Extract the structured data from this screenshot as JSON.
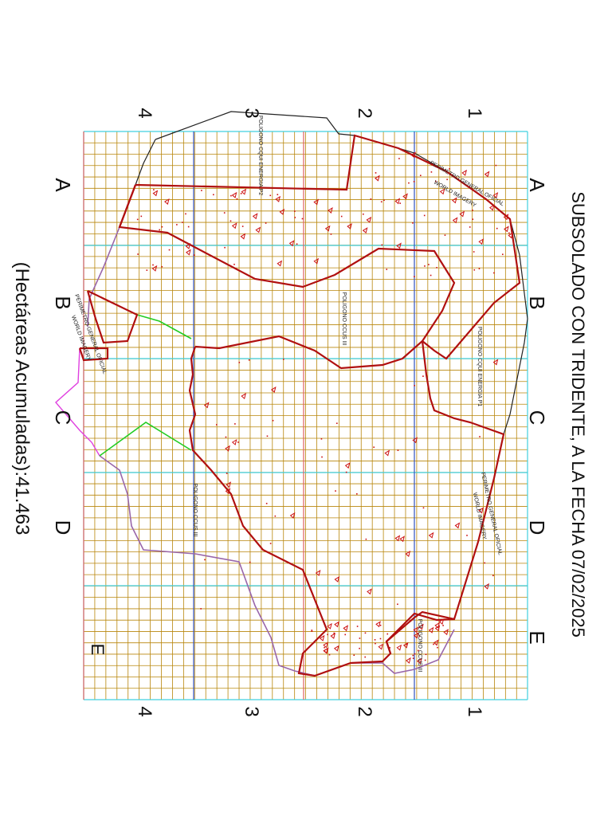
{
  "title": "SUBSOLADO CON TRIDENTE,   A LA FECHA 07/02/2025",
  "accumulated": "(Hectáreas Acumuladas):41.463",
  "grid_letters": [
    "A",
    "B",
    "C",
    "D",
    "E"
  ],
  "grid_numbers": [
    "1",
    "2",
    "3",
    "4"
  ],
  "corner_label": "E",
  "polygons": {
    "p1": "POLIGONO CQUI ENERGIA P1",
    "p2": "POLIGONO CQUI ENERGIA P2",
    "ccus3": "POLIGONO CCUS III",
    "ccus3b": "POLIGONO CCUS III",
    "ccus_dot": "POLIGONO CCUS III"
  },
  "perimeter_labels": {
    "top": "PERÍMETRO GENERAL OFICIAL",
    "top_sub": "WORLD IMAGERY",
    "left": "PERÍMETRO GENERAL OFICIAL",
    "left_sub": "WORLD IMAGERY",
    "bottom": "PERÍMETRO GENERAL OFICIAL",
    "bottom_sub": "WORLD IMAGERY"
  },
  "colors": {
    "grid": "#b8860b",
    "cyan_grid": "#40d0e0",
    "boundary": "#b01010",
    "marks": "#cc1010",
    "green_line": "#22cc22",
    "magenta_line": "#e040e0",
    "purple_line": "#9966aa",
    "black_line": "#222222",
    "blue_line": "#3050c0"
  }
}
